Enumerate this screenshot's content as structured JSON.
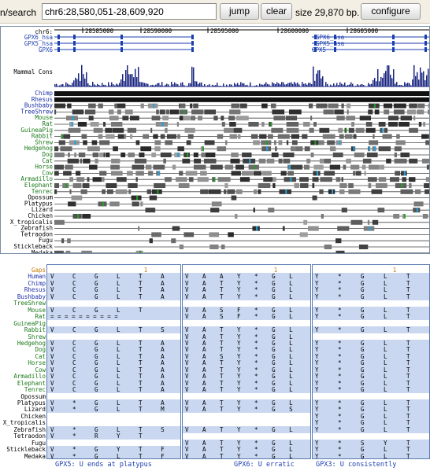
{
  "nav": {
    "label": "n/search",
    "position": "chr6:28,580,051-28,609,920",
    "jump_label": "jump",
    "clear_label": "clear",
    "size_text": "size 29,870 bp.",
    "configure_label": "configure"
  },
  "browser": {
    "chrom_label": "chr6:",
    "ruler_ticks": [
      "28585000",
      "28590000",
      "28595000",
      "28600000",
      "28605000"
    ],
    "gene_tracks": [
      {
        "label": "GPX6_hsa",
        "right_labels": [
          "GPX6_hsa"
        ]
      },
      {
        "label": "GPX5_hsa",
        "right_labels": [
          "GPX5_hsa"
        ]
      },
      {
        "label": "GPX6",
        "right_labels": [
          "GPX5"
        ]
      }
    ],
    "cons_label": "Mammal Cons",
    "species": [
      "Chimp",
      "Rhesus",
      "Bushbaby",
      "TreeShrew",
      "Mouse",
      "Rat",
      "GuineaPig",
      "Rabbit",
      "Shrew",
      "Hedgehog",
      "Dog",
      "Cat",
      "Horse",
      "Cow",
      "Armadillo",
      "Elephant",
      "Tenrec",
      "Opossum",
      "Platypus",
      "Lizard",
      "Chicken",
      "X_tropicalis",
      "Zebrafish",
      "Tetraodon",
      "Fugu",
      "Stickleback",
      "Medaka"
    ],
    "species_colors": {
      "primate": "#1b2fa6",
      "glires": "#1a7a1a",
      "laurasia": "#1a7a1a",
      "other": "#000000"
    }
  },
  "alignment": {
    "names": [
      "Gaps",
      "Human",
      "Chimp",
      "Rhesus",
      "Bushbaby",
      "TreeShrew",
      "Mouse",
      "Rat",
      "GuineaPig",
      "Rabbit",
      "Shrew",
      "Hedgehog",
      "Dog",
      "Cat",
      "Horse",
      "Cow",
      "Armadillo",
      "Elephant",
      "Tenrec",
      "Opossum",
      "Platypus",
      "Lizard",
      "Chicken",
      "X_tropicalis",
      "Zebrafish",
      "Tetraodon",
      "Fugu",
      "Stickleback",
      "Medaka"
    ],
    "panels": [
      {
        "gap_mark": "1",
        "rows": [
          "",
          "VCGLTA",
          "VCGLTA",
          "VCGLTA",
          "VCGLTA",
          "",
          "VCGLT",
          "= = = = = = = = = =",
          "",
          "VCGLTS",
          "",
          "VCGLTA",
          "VCGLTA",
          "VCGLTA",
          "VCGLTA",
          "VCGLTA",
          "VCGLTA",
          "VCGLTA",
          "VCGLTA",
          "",
          "V*GLTA",
          "V*GLTM",
          "",
          "",
          "V*GLTS",
          "V*RYT",
          "",
          "V*GYTF",
          "V*GLTF"
        ],
        "caption": "GPX5: U ends at platypus"
      },
      {
        "gap_mark": "1",
        "rows": [
          "",
          "VAAY*GL",
          "VATY*GL",
          "VATY*GL",
          "VATY*GL",
          "",
          "VASF*GL",
          "VASF*GL",
          "",
          "VATY*GL",
          "VATY*GL",
          "VATY*GL",
          "VATY*GL",
          "VASY*GL",
          "VATY*GL",
          "VATY*GL",
          "VATY*GL",
          "VATY*GL",
          "VATY*GL",
          "",
          "VATY*GL",
          "VATY*GS",
          "",
          "",
          "VATY*GL",
          "",
          "VATY*GL",
          "VATY*GL",
          "VATY*GL"
        ],
        "caption": "GPX6: U erratic"
      },
      {
        "gap_mark": "1",
        "rows": [
          "",
          "Y*GLT",
          "Y*GLT",
          "Y*GLT",
          "Y*GLT",
          "",
          "Y*GLT",
          "Y*GLT",
          "",
          "Y*GLT",
          "",
          "Y*GLT",
          "Y*GLT",
          "Y*GLT",
          "Y*GLT",
          "Y*GLT",
          "Y*GLT",
          "Y*GLT",
          "Y*GLT",
          "",
          "Y*GLT",
          "Y*GLT",
          "Y*GLT",
          "Y*GLT",
          "Y*GLT",
          "",
          "Y*SYT",
          "Y*GLT",
          "Y*GLT"
        ],
        "caption": "GPX3: U consistently"
      }
    ]
  },
  "colors": {
    "link_blue": "#1b3fae",
    "cons_blue": "#1a2580",
    "panel_bg": "#c9d7f0"
  }
}
